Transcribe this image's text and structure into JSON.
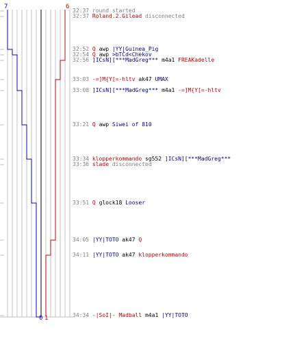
{
  "colors": {
    "team_ct": "#0000cc",
    "team_t": "#cc0000",
    "grid": "#c0c0c0",
    "divider": "#808080"
  },
  "score": {
    "ct_start": "7",
    "t_start": "6",
    "ct_end": "0",
    "t_end": "1"
  },
  "events": [
    {
      "time": "32:37",
      "parts": [
        {
          "text": "round started",
          "cls": "gray"
        }
      ]
    },
    {
      "time": "32:37",
      "parts": [
        {
          "text": "Roland.2.Gilead",
          "cls": "red"
        },
        {
          "text": " disconnected",
          "cls": "gray"
        }
      ]
    },
    {
      "time": "32:52",
      "parts": [
        {
          "text": "Q",
          "cls": "red"
        },
        {
          "text": " awp ",
          "cls": "dark"
        },
        {
          "text": "|YY|Guinea_Pig",
          "cls": "blue"
        }
      ]
    },
    {
      "time": "32:54",
      "parts": [
        {
          "text": "Q",
          "cls": "red"
        },
        {
          "text": " awp ",
          "cls": "dark"
        },
        {
          "text": ">bTCd<Chekov",
          "cls": "blue"
        }
      ]
    },
    {
      "time": "32:56",
      "parts": [
        {
          "text": "]ICsN][***MadGreg***",
          "cls": "blue"
        },
        {
          "text": " m4a1 ",
          "cls": "dark"
        },
        {
          "text": "FREAKadelle",
          "cls": "red"
        }
      ]
    },
    {
      "time": "33:03",
      "parts": [
        {
          "text": "-=]M{Y[=-hltv",
          "cls": "red"
        },
        {
          "text": " ak47 ",
          "cls": "dark"
        },
        {
          "text": "UMAX",
          "cls": "blue"
        }
      ]
    },
    {
      "time": "33:08",
      "parts": [
        {
          "text": "]ICsN][***MadGreg***",
          "cls": "blue"
        },
        {
          "text": " m4a1 ",
          "cls": "dark"
        },
        {
          "text": "-=]M{Y[=-hltv",
          "cls": "red"
        }
      ]
    },
    {
      "time": "33:21",
      "parts": [
        {
          "text": "Q",
          "cls": "red"
        },
        {
          "text": " awp ",
          "cls": "dark"
        },
        {
          "text": "Siwei of  810",
          "cls": "blue"
        }
      ]
    },
    {
      "time": "33:34",
      "parts": [
        {
          "text": "klopperkommando",
          "cls": "red"
        },
        {
          "text": " sg552 ",
          "cls": "dark"
        },
        {
          "text": "]ICsN][***MadGreg***",
          "cls": "blue"
        }
      ]
    },
    {
      "time": "33:36",
      "parts": [
        {
          "text": "slade",
          "cls": "red"
        },
        {
          "text": " disconnected",
          "cls": "gray"
        }
      ]
    },
    {
      "time": "33:51",
      "parts": [
        {
          "text": "Q",
          "cls": "red"
        },
        {
          "text": " glock18 ",
          "cls": "dark"
        },
        {
          "text": "Looser",
          "cls": "blue"
        }
      ]
    },
    {
      "time": "34:05",
      "parts": [
        {
          "text": "|YY|TOTO",
          "cls": "blue"
        },
        {
          "text": " ak47 ",
          "cls": "dark"
        },
        {
          "text": "Q",
          "cls": "red"
        }
      ]
    },
    {
      "time": "34:11",
      "parts": [
        {
          "text": "|YY|TOTO",
          "cls": "blue"
        },
        {
          "text": " ak47 ",
          "cls": "dark"
        },
        {
          "text": "klopperkommando",
          "cls": "red"
        }
      ]
    },
    {
      "time": "34:34",
      "parts": [
        {
          "text": "-|SoI|- Madball",
          "cls": "red"
        },
        {
          "text": " m4a1 ",
          "cls": "dark"
        },
        {
          "text": "|YY|TOTO",
          "cls": "blue"
        }
      ]
    }
  ]
}
